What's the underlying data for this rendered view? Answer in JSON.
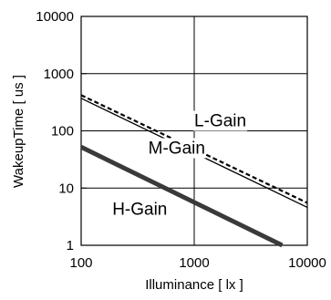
{
  "chart_data": {
    "type": "line",
    "xlabel": "Illuminance [ lx ]",
    "ylabel": "WakeupTime [ us ]",
    "x_scale": "log",
    "y_scale": "log",
    "xlim": [
      100,
      10000
    ],
    "ylim": [
      1,
      10000
    ],
    "x_ticks": [
      "100",
      "1000",
      "10000"
    ],
    "y_ticks": [
      "1",
      "10",
      "100",
      "1000",
      "10000"
    ],
    "grid": true,
    "series": [
      {
        "name": "L-Gain",
        "x": [
          100,
          10000
        ],
        "y": [
          420,
          5.5
        ],
        "line": "dashed",
        "color": "#000000"
      },
      {
        "name": "M-Gain",
        "x": [
          100,
          10000
        ],
        "y": [
          370,
          4.6
        ],
        "line": "solid",
        "color": "#000000"
      },
      {
        "name": "H-Gain",
        "x": [
          100,
          6000
        ],
        "y": [
          52,
          1.0
        ],
        "line": "thick",
        "color": "#3a3a3a"
      }
    ]
  }
}
